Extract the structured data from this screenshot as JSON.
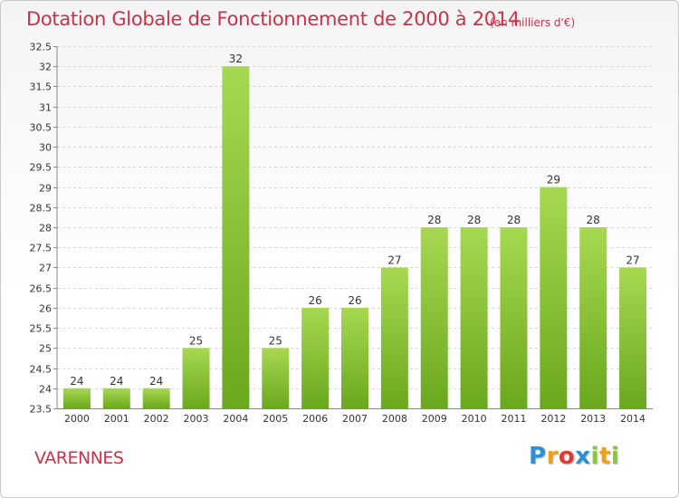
{
  "title": "Dotation Globale de Fonctionnement de 2000 à 2014",
  "subtitle": "(en milliers d'€)",
  "commune": "VARENNES",
  "logo": {
    "text": "Proxiti",
    "letters": [
      "P",
      "r",
      "o",
      "x",
      "i",
      "t",
      "i"
    ],
    "colors": [
      "#2f8fd6",
      "#f0a020",
      "#e23a3a",
      "#2f8fd6",
      "#8cc63f",
      "#f0a020",
      "#8cc63f"
    ]
  },
  "colors": {
    "title": "#c8324b",
    "bar_light": "#a8d852",
    "bar_dark": "#6aa81e",
    "grid": "#d6d6d6",
    "axis_text": "#333333"
  },
  "chart_data": {
    "type": "bar",
    "title": "Dotation Globale de Fonctionnement de 2000 à 2014",
    "subtitle": "(en milliers d'€)",
    "categories": [
      "2000",
      "2001",
      "2002",
      "2003",
      "2004",
      "2005",
      "2006",
      "2007",
      "2008",
      "2009",
      "2010",
      "2011",
      "2012",
      "2013",
      "2014"
    ],
    "values": [
      24,
      24,
      24,
      25,
      32,
      25,
      26,
      26,
      27,
      28,
      28,
      28,
      29,
      28,
      27
    ],
    "value_labels": [
      "24",
      "24",
      "24",
      "25",
      "32",
      "25",
      "26",
      "26",
      "27",
      "28",
      "28",
      "28",
      "29",
      "28",
      "27"
    ],
    "ylim": [
      23.5,
      32.5
    ],
    "yticks": [
      23.5,
      24,
      24.5,
      25,
      25.5,
      26,
      26.5,
      27,
      27.5,
      28,
      28.5,
      29,
      29.5,
      30,
      30.5,
      31,
      31.5,
      32,
      32.5
    ],
    "ytick_labels": [
      "23.5",
      "24",
      "24.5",
      "25",
      "25.5",
      "26",
      "26.5",
      "27",
      "27.5",
      "28",
      "28.5",
      "29",
      "29.5",
      "30",
      "30.5",
      "31",
      "31.5",
      "32",
      "32.5"
    ],
    "grid": true,
    "xlabel": "",
    "ylabel": ""
  }
}
